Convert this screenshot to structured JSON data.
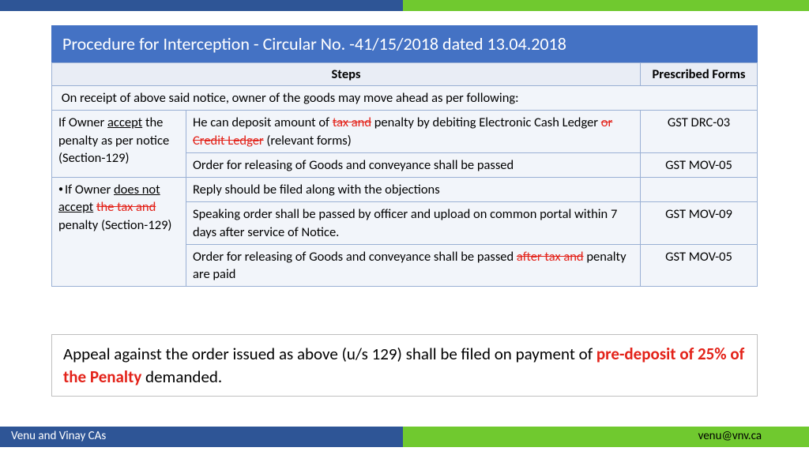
{
  "colors": {
    "header_blue": "#4472c4",
    "dark_blue": "#2e5596",
    "green": "#70c92f",
    "table_border": "#9ab0d4",
    "table_header_bg": "#e9edf5",
    "table_cell_bg": "#f2f5fa",
    "red": "#e32219",
    "appeal_border": "#bfbfbf"
  },
  "title": "Procedure for Interception - Circular No. -41/15/2018 dated 13.04.2018",
  "table": {
    "headers": {
      "c1": "Steps",
      "c2": "Prescribed Forms"
    },
    "intro_row": "On receipt of above said notice, owner of the goods may move ahead as per following:",
    "group1": {
      "label_pre": "If Owner ",
      "label_u": "accept",
      "label_post": " the penalty as per notice (Section-129)",
      "r1_a": "He can deposit amount of ",
      "r1_strike1": "tax and",
      "r1_b": " penalty by debiting Electronic Cash Ledger ",
      "r1_strike2": "or Credit Ledger",
      "r1_c": " (relevant forms)",
      "r1_form": "GST DRC-03",
      "r2": "Order for releasing of Goods and conveyance shall be passed",
      "r2_form": "GST MOV-05"
    },
    "group2": {
      "label_pre": "If Owner ",
      "label_u": "does not accept",
      "label_mid": " ",
      "label_strike": "the tax and",
      "label_post": " penalty (Section-129)",
      "r1": "Reply should be filed along with the objections",
      "r1_form": "",
      "r2": "Speaking order shall be passed by officer and upload on common portal within 7 days after service of Notice.",
      "r2_form": "GST MOV-09",
      "r3_a": "Order for releasing of Goods and conveyance shall be passed ",
      "r3_strike": "after tax and",
      "r3_b": " penalty are paid",
      "r3_form": "GST MOV-05"
    }
  },
  "appeal": {
    "pre": "Appeal against the order issued as above (u/s 129) shall be filed on payment of ",
    "red": "pre-deposit of 25% of the Penalty",
    "post": " demanded."
  },
  "footer": {
    "left": "Venu and  Vinay CAs",
    "right": "venu@vnv.ca"
  }
}
